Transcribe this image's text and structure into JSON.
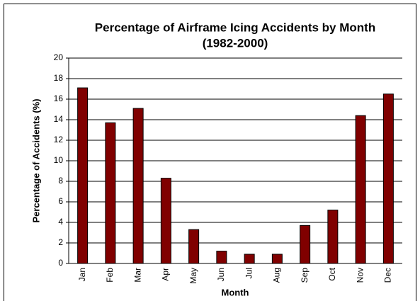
{
  "chart_data": {
    "type": "bar",
    "title": "Percentage of Airframe Icing Accidents by Month",
    "subtitle": "(1982-2000)",
    "x_label": "Month",
    "y_label": "Percentage of Accidents (%)",
    "categories": [
      "Jan",
      "Feb",
      "Mar",
      "Apr",
      "May",
      "Jun",
      "Jul",
      "Aug",
      "Sep",
      "Oct",
      "Nov",
      "Dec"
    ],
    "values": [
      17.1,
      13.7,
      15.1,
      8.3,
      3.3,
      1.2,
      0.9,
      0.9,
      3.7,
      5.2,
      14.4,
      16.5
    ],
    "color": "#800000",
    "ylim": [
      0,
      20
    ],
    "yticks": [
      0,
      2,
      4,
      6,
      8,
      10,
      12,
      14,
      16,
      18,
      20
    ],
    "grid": true
  }
}
